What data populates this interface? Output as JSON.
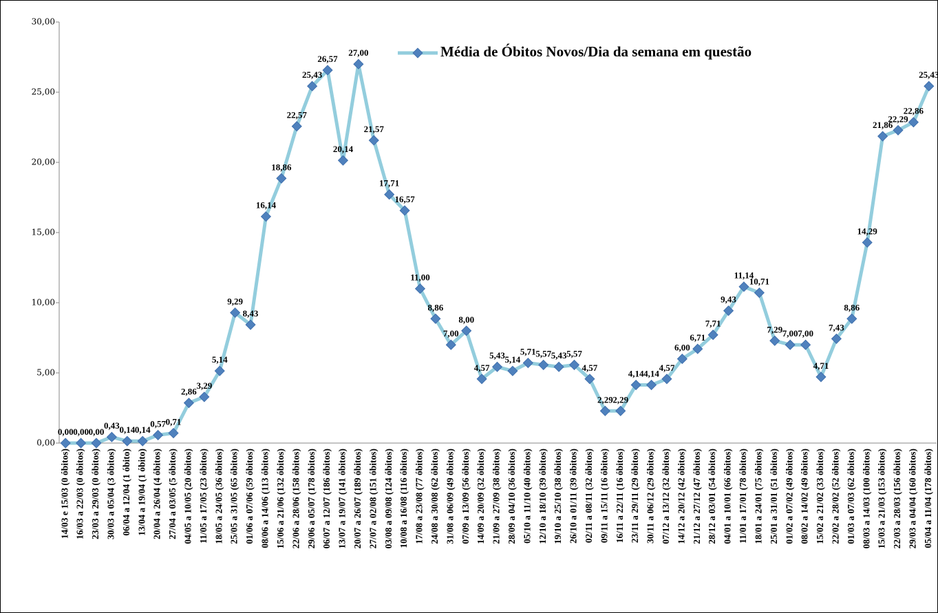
{
  "chart_data": {
    "type": "line",
    "categories": [
      "14/03 e 15/03 (0 óbitos)",
      "16/03 a 22/03 (0 óbitos)",
      "23/03 a 29/03 (0 óbitos)",
      "30/03 a 05/04 (3 óbitos)",
      "06/04 a 12/04 (1 óbito)",
      "13/04 a 19/04 (1 óbito)",
      "20/04 a 26/04 (4 óbitos)",
      "27/04 a 03/05 (5 óbitos)",
      "04/05 a 10/05 (20 óbitos)",
      "11/05 a 17/05 (23 óbitos)",
      "18/05 a 24/05 (36 óbitos)",
      "25/05 a 31/05 (65 óbitos)",
      "01/06 a 07/06 (59 óbitos)",
      "08/06 a 14/06 (113 óbitos)",
      "15/06 a 21/06 (132 óbitos)",
      "22/06 a 28/06 (158 óbitos)",
      "29/06 a 05/07 (178 óbitos)",
      "06/07 a 12/07 (186 óbitos)",
      "13/07 a 19/07 (141 óbitos)",
      "20/07 a 26/07 (189 óbitos)",
      "27/07 a 02/08 (151 óbitos)",
      "03/08 a 09/08 (124 óbitos)",
      "10/08 a 16/08 (116 óbitos)",
      "17/08 a 23/08 (77 óbitos)",
      "24/08 a 30/08 (62 óbitos)",
      "31/08 a 06/09 (49 óbitos)",
      "07/09 a 13/09 (56 óbitos)",
      "14/09 a 20/09 (32 óbitos)",
      "21/09 a 27/09 (38 óbitos)",
      "28/09 a 04/10 (36 óbitos)",
      "05/10 a 11/10 (40 óbitos)",
      "12/10 a 18/10 (39 óbitos)",
      "19/10 a 25/10 (38 óbitos)",
      "26/10 a 01/11 (39 óbitos)",
      "02/11 a 08/11 (32 óbitos)",
      "09/11 a 15/11 (16 óbitos)",
      "16/11 a 22/11 (16 óbitos)",
      "23/11 a 29/11 (29 óbitos)",
      "30/11 a 06/12 (29 óbitos)",
      "07/12 a 13/12 (32 óbitos)",
      "14/12 a 20/12 (42 óbitos)",
      "21/12 a 27/12 (47 óbitos)",
      "28/12 a 03/01 (54 óbitos)",
      "04/01 a 10/01 (66 óbitos)",
      "11/01 a 17/01 (78 óbitos)",
      "18/01 a 24/01 (75 óbitos)",
      "25/01 a 31/01 (51 óbitos)",
      "01/02 a 07/02 (49 óbitos)",
      "08/02 a 14/02 (49 óbitos)",
      "15/02 a 21/02 (33 óbitos)",
      "22/02 a 28/02 (52 óbitos)",
      "01/03 a 07/03 (62 óbitos)",
      "08/03 a 14/03 (100 óbitos)",
      "15/03 a 21/03 (153 óbitos)",
      "22/03 a 28/03 (156 óbitos)",
      "29/03 a 04/04 (160 óbitos)",
      "05/04 a 11/04 (178 óbitos)"
    ],
    "series": [
      {
        "name": "Média de Óbitos Novos/Dia da semana em questão",
        "color": "#93cddd",
        "marker_color": "#4f81bd",
        "values": [
          0,
          0,
          0,
          0.43,
          0.14,
          0.14,
          0.57,
          0.71,
          2.86,
          3.29,
          5.14,
          9.29,
          8.43,
          16.14,
          18.86,
          22.57,
          25.43,
          26.57,
          20.14,
          27,
          21.57,
          17.71,
          16.57,
          11,
          8.86,
          7,
          8,
          4.57,
          5.43,
          5.14,
          5.71,
          5.57,
          5.43,
          5.57,
          4.57,
          2.29,
          2.29,
          4.14,
          4.14,
          4.57,
          6,
          6.71,
          7.71,
          9.43,
          11.14,
          10.71,
          7.29,
          7,
          7,
          4.71,
          7.43,
          8.86,
          14.29,
          21.86,
          22.29,
          22.86,
          25.43
        ],
        "value_labels": [
          "0,00",
          "0,00",
          "0,00",
          "0,43",
          "0,14",
          "0,14",
          "0,57",
          "0,71",
          "2,86",
          "3,29",
          "5,14",
          "9,29",
          "8,43",
          "16,14",
          "18,86",
          "22,57",
          "25,43",
          "26,57",
          "20,14",
          "27,00",
          "21,57",
          "17,71",
          "16,57",
          "11,00",
          "8,86",
          "7,00",
          "8,00",
          "4,57",
          "5,43",
          "5,14",
          "5,71",
          "5,57",
          "5,43",
          "5,57",
          "4,57",
          "2,29",
          "2,29",
          "4,14",
          "4,14",
          "4,57",
          "6,00",
          "6,71",
          "7,71",
          "9,43",
          "11,14",
          "10,71",
          "7,29",
          "7,00",
          "7,00",
          "4,71",
          "7,43",
          "8,86",
          "14,29",
          "21,86",
          "22,29",
          "22,86",
          "25,43"
        ]
      }
    ],
    "ylim": [
      0,
      30
    ],
    "yticks": [
      {
        "value": 0,
        "label": "0,00"
      },
      {
        "value": 5,
        "label": "5,00"
      },
      {
        "value": 10,
        "label": "10,00"
      },
      {
        "value": 15,
        "label": "15,00"
      },
      {
        "value": 20,
        "label": "20,00"
      },
      {
        "value": 25,
        "label": "25,00"
      },
      {
        "value": 30,
        "label": "30,00"
      }
    ],
    "grid": false
  }
}
